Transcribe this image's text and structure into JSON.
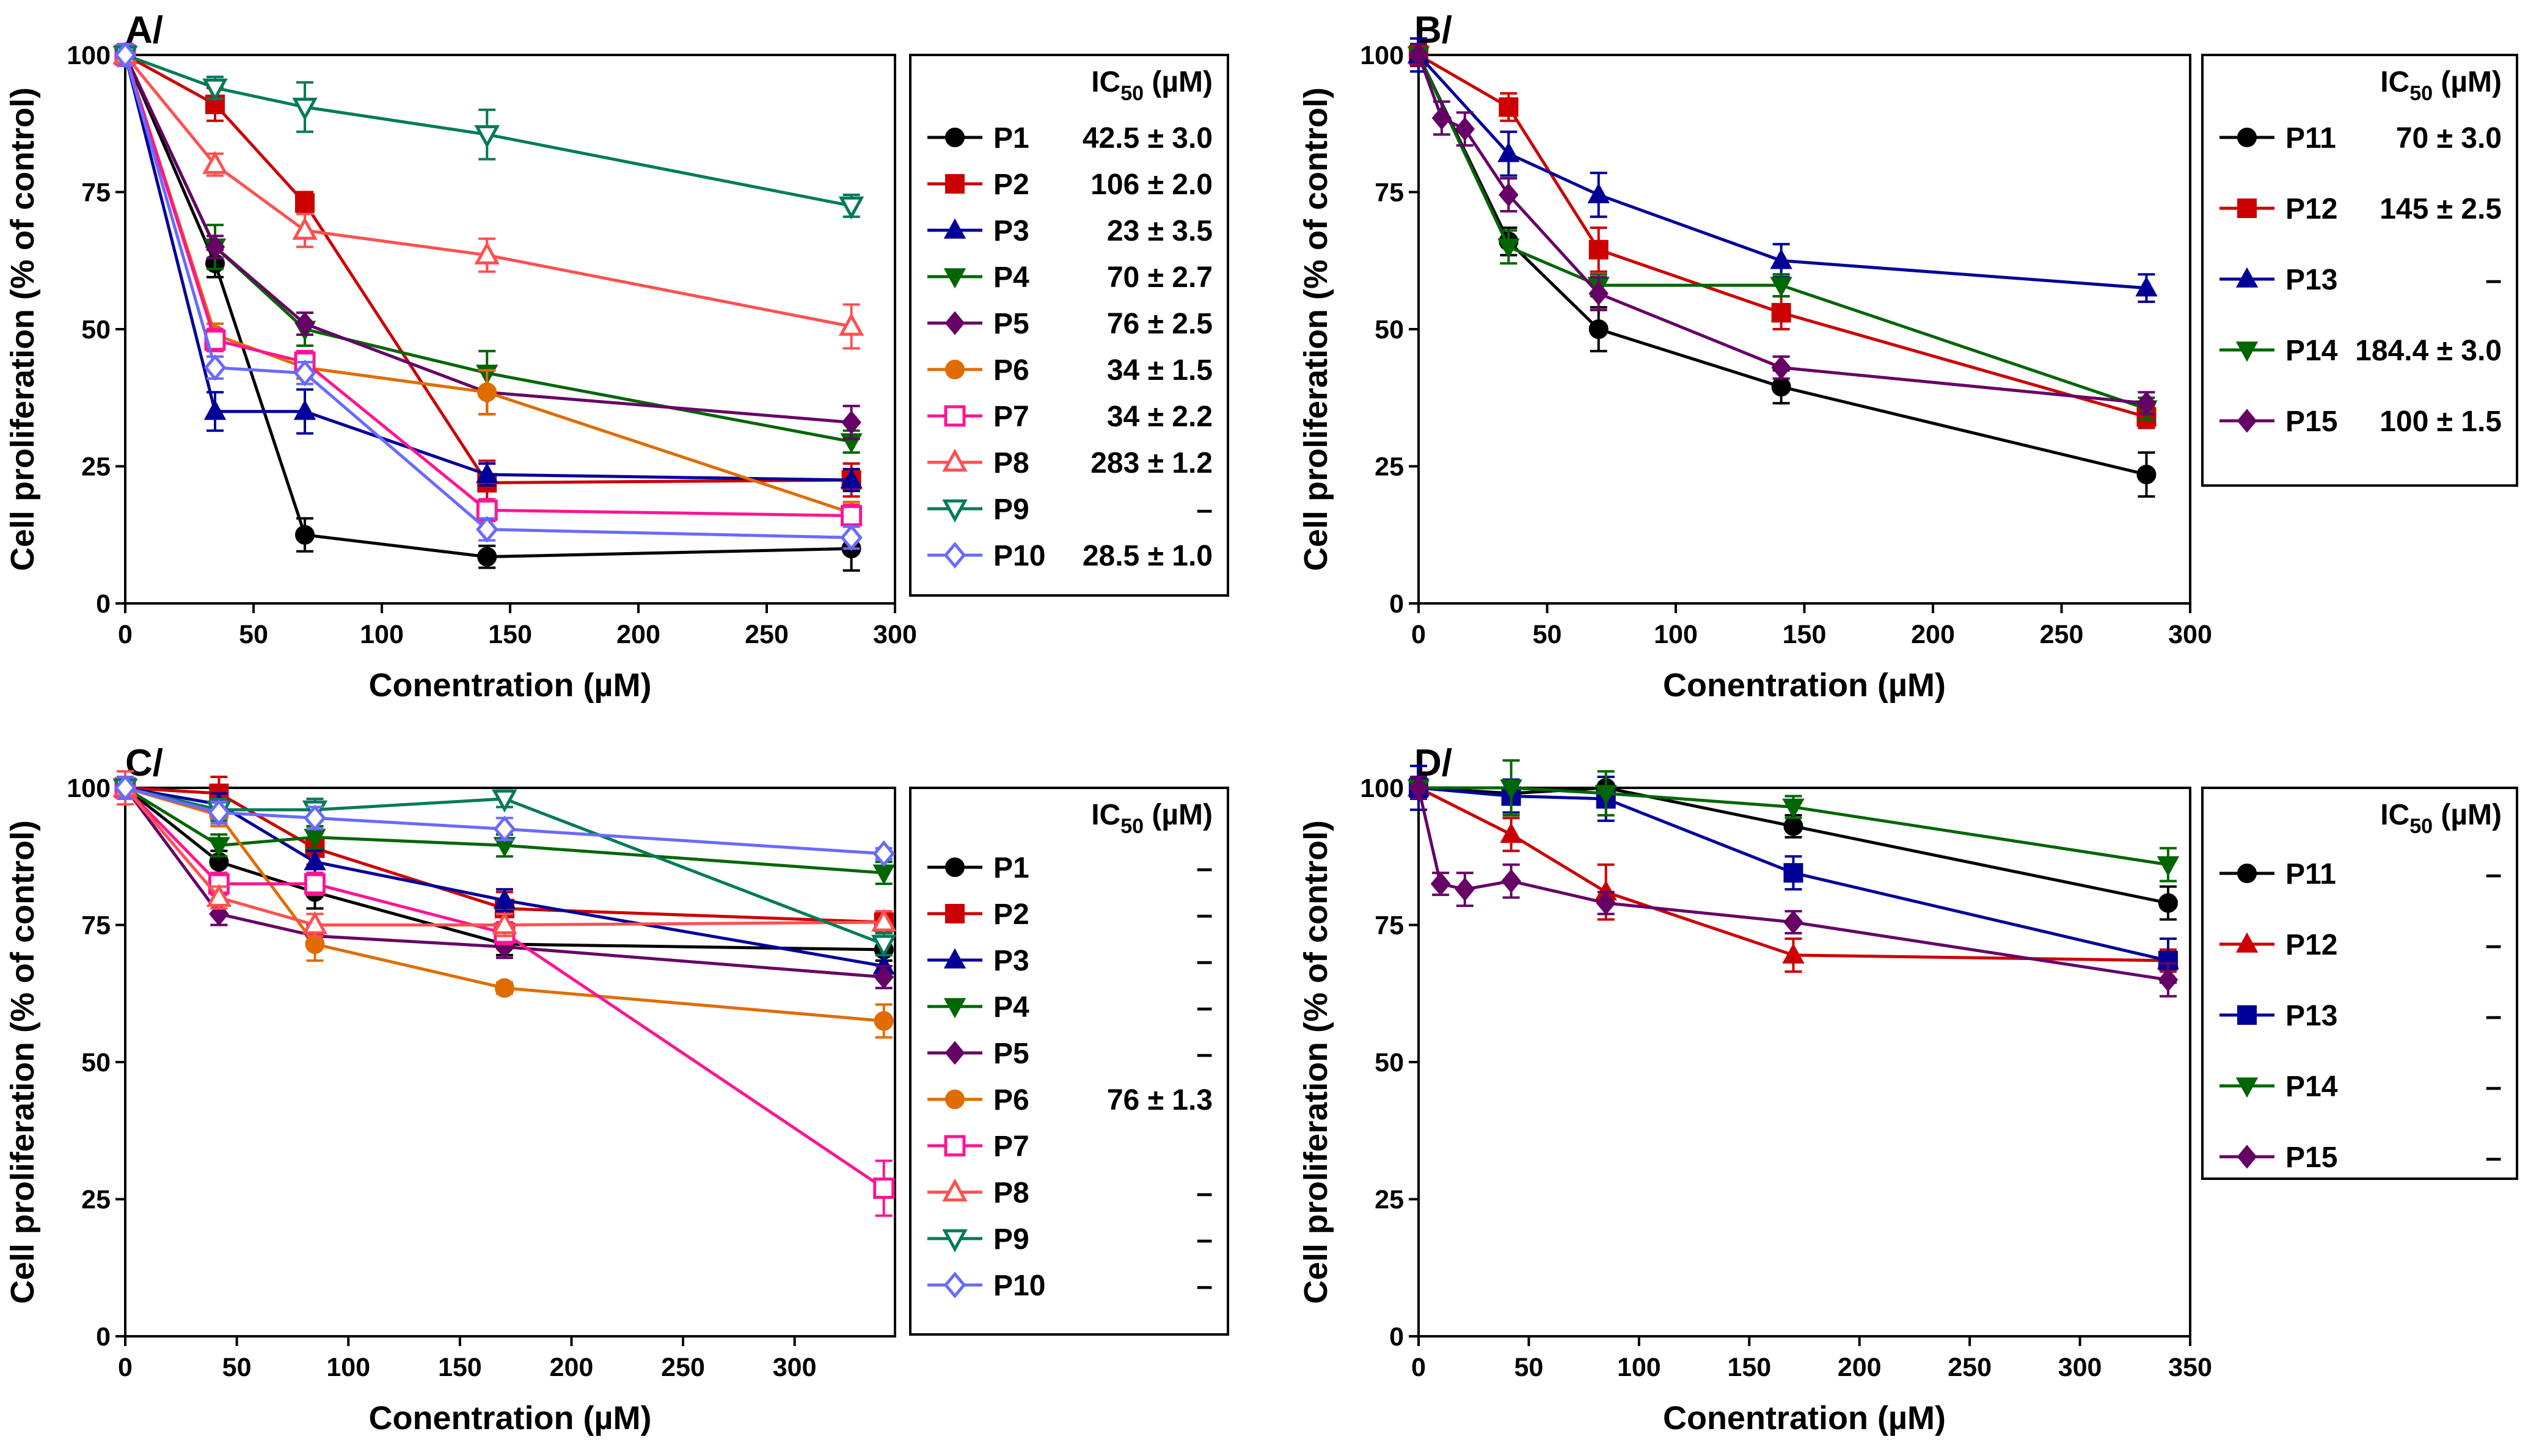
{
  "chart_data": [
    {
      "type": "line",
      "panel_label": "A/",
      "xlabel": "Conentration (µM)",
      "ylabel": "Cell proliferation (% of control)",
      "xlim": [
        0,
        300
      ],
      "ylim": [
        0,
        100
      ],
      "xticks": [
        "0",
        "50",
        "100",
        "150",
        "200",
        "250",
        "300"
      ],
      "yticks": [
        "0",
        "25",
        "50",
        "75",
        "100"
      ],
      "legend_header": "IC",
      "legend_header_sub": "50",
      "legend_header_unit": " (µM)",
      "series": [
        {
          "name": "P1",
          "ic50": "42.5 ± 3.0",
          "color": "#000000",
          "marker": "circle",
          "x": [
            0,
            35,
            70,
            141,
            283
          ],
          "y": [
            100,
            62,
            12.5,
            8.5,
            10
          ],
          "err": [
            2,
            2.5,
            3,
            2,
            4
          ]
        },
        {
          "name": "P2",
          "ic50": "106 ± 2.0",
          "color": "#cc0000",
          "marker": "square",
          "x": [
            0,
            35,
            70,
            141,
            283
          ],
          "y": [
            100,
            91,
            73,
            22,
            22.5
          ],
          "err": [
            2,
            3,
            2,
            4,
            3
          ]
        },
        {
          "name": "P3",
          "ic50": "23 ± 3.5",
          "color": "#000099",
          "marker": "triangle",
          "x": [
            0,
            35,
            70,
            141,
            283
          ],
          "y": [
            100,
            35,
            35,
            23.5,
            22.5
          ],
          "err": [
            2,
            3.5,
            4,
            2,
            2
          ]
        },
        {
          "name": "P4",
          "ic50": "70 ± 2.7",
          "color": "#006600",
          "marker": "triangle-down",
          "x": [
            0,
            35,
            70,
            141,
            283
          ],
          "y": [
            100,
            65,
            50,
            42,
            29.5
          ],
          "err": [
            2,
            4,
            3,
            4,
            2
          ]
        },
        {
          "name": "P5",
          "ic50": "76 ± 2.5",
          "color": "#660066",
          "marker": "diamond",
          "x": [
            0,
            35,
            70,
            141,
            283
          ],
          "y": [
            100,
            65,
            51,
            38.5,
            33
          ],
          "err": [
            2,
            2,
            2,
            4,
            3
          ]
        },
        {
          "name": "P6",
          "ic50": "34 ± 1.5",
          "color": "#e06c00",
          "marker": "circle",
          "x": [
            0,
            35,
            70,
            141,
            283
          ],
          "y": [
            100,
            49,
            43,
            38.5,
            16.5
          ],
          "err": [
            2,
            2,
            2,
            4,
            2
          ]
        },
        {
          "name": "P7",
          "ic50": "34 ± 2.2",
          "color": "#ff1493",
          "marker": "square-open",
          "x": [
            0,
            35,
            70,
            141,
            283
          ],
          "y": [
            100,
            48,
            44,
            17,
            16
          ],
          "err": [
            2,
            2,
            2,
            2,
            2
          ]
        },
        {
          "name": "P8",
          "ic50": "283 ± 1.2",
          "color": "#ff5050",
          "marker": "triangle-open",
          "x": [
            0,
            35,
            70,
            141,
            283
          ],
          "y": [
            100,
            80,
            68,
            63.5,
            50.5
          ],
          "err": [
            2,
            2,
            3,
            3,
            4
          ]
        },
        {
          "name": "P9",
          "ic50": "–",
          "color": "#007a5a",
          "marker": "triangle-down-open",
          "x": [
            0,
            35,
            70,
            141,
            283
          ],
          "y": [
            100,
            94,
            90.5,
            85.5,
            72.5
          ],
          "err": [
            2,
            2,
            4.5,
            4.5,
            2
          ]
        },
        {
          "name": "P10",
          "ic50": "28.5 ± 1.0",
          "color": "#6a6aff",
          "marker": "diamond-open",
          "x": [
            0,
            35,
            70,
            141,
            283
          ],
          "y": [
            100,
            43,
            42,
            13.5,
            12
          ],
          "err": [
            2,
            2,
            2,
            2,
            2
          ]
        }
      ]
    },
    {
      "type": "line",
      "panel_label": "B/",
      "xlabel": "Conentration (µM)",
      "ylabel": "Cell proliferation (% of control)",
      "xlim": [
        0,
        300
      ],
      "ylim": [
        0,
        100
      ],
      "xticks": [
        "0",
        "50",
        "100",
        "150",
        "200",
        "250",
        "300"
      ],
      "yticks": [
        "0",
        "25",
        "50",
        "75",
        "100"
      ],
      "legend_header": "IC",
      "legend_header_sub": "50",
      "legend_header_unit": " (µM)",
      "series": [
        {
          "name": "P11",
          "ic50": "70 ± 3.0",
          "color": "#000000",
          "marker": "circle",
          "x": [
            0,
            35,
            70,
            141,
            283
          ],
          "y": [
            100,
            66,
            50,
            39.5,
            23.5
          ],
          "err": [
            2,
            2.5,
            4,
            3,
            4
          ]
        },
        {
          "name": "P12",
          "ic50": "145 ± 2.5",
          "color": "#cc0000",
          "marker": "square",
          "x": [
            0,
            35,
            70,
            141,
            283
          ],
          "y": [
            100,
            90.5,
            64.5,
            53,
            34
          ],
          "err": [
            2,
            2.5,
            4,
            3,
            2
          ]
        },
        {
          "name": "P13",
          "ic50": "–",
          "color": "#000099",
          "marker": "triangle",
          "x": [
            0,
            35,
            70,
            141,
            283
          ],
          "y": [
            100,
            82,
            74.5,
            62.5,
            57.5
          ],
          "err": [
            3,
            4,
            4,
            3,
            2.5
          ]
        },
        {
          "name": "P14",
          "ic50": "184.4 ± 3.0",
          "color": "#006600",
          "marker": "triangle-down",
          "x": [
            0,
            35,
            70,
            141,
            283
          ],
          "y": [
            100,
            65,
            58,
            58,
            35.5
          ],
          "err": [
            2,
            3,
            2,
            2,
            2
          ]
        },
        {
          "name": "P15",
          "ic50": "100 ± 1.5",
          "color": "#660066",
          "marker": "diamond",
          "x": [
            0,
            9,
            18,
            35,
            70,
            141,
            283
          ],
          "y": [
            100,
            88.5,
            86.5,
            74.5,
            56.5,
            43,
            36.5
          ],
          "err": [
            2,
            3,
            3,
            3,
            3,
            2,
            2
          ]
        }
      ]
    },
    {
      "type": "line",
      "panel_label": "C/",
      "xlabel": "Conentration (µM)",
      "ylabel": "Cell proliferation (% of control)",
      "xlim": [
        0,
        345
      ],
      "ylim": [
        0,
        100
      ],
      "xticks": [
        "0",
        "50",
        "100",
        "150",
        "200",
        "250",
        "300"
      ],
      "yticks": [
        "0",
        "25",
        "50",
        "75",
        "100"
      ],
      "legend_header": "IC",
      "legend_header_sub": "50",
      "legend_header_unit": " (µM)",
      "series": [
        {
          "name": "P1",
          "ic50": "–",
          "color": "#000000",
          "marker": "circle",
          "x": [
            0,
            42,
            85,
            170,
            340
          ],
          "y": [
            100,
            86.5,
            81,
            71.5,
            70.5
          ],
          "err": [
            2,
            2,
            3,
            2,
            2
          ]
        },
        {
          "name": "P2",
          "ic50": "–",
          "color": "#cc0000",
          "marker": "square",
          "x": [
            0,
            42,
            85,
            170,
            340
          ],
          "y": [
            100,
            99,
            89,
            78,
            75.5
          ],
          "err": [
            2,
            3,
            3,
            3,
            2
          ]
        },
        {
          "name": "P3",
          "ic50": "–",
          "color": "#000099",
          "marker": "triangle",
          "x": [
            0,
            42,
            85,
            170,
            340
          ],
          "y": [
            100,
            97,
            86.5,
            79.5,
            67.5
          ],
          "err": [
            2,
            2,
            2,
            2,
            2
          ]
        },
        {
          "name": "P4",
          "ic50": "–",
          "color": "#006600",
          "marker": "triangle-down",
          "x": [
            0,
            42,
            85,
            170,
            340
          ],
          "y": [
            100,
            89.5,
            91,
            89.5,
            84.5
          ],
          "err": [
            2,
            2,
            2,
            2,
            2
          ]
        },
        {
          "name": "P5",
          "ic50": "–",
          "color": "#660066",
          "marker": "diamond",
          "x": [
            0,
            42,
            85,
            170,
            340
          ],
          "y": [
            100,
            77,
            73,
            71,
            65.5
          ],
          "err": [
            2,
            2,
            2,
            2,
            2
          ]
        },
        {
          "name": "P6",
          "ic50": "76 ± 1.3",
          "color": "#e06c00",
          "marker": "circle",
          "x": [
            0,
            42,
            85,
            170,
            340
          ],
          "y": [
            100,
            95,
            71.5,
            63.5,
            57.5
          ],
          "err": [
            2,
            2,
            3,
            1,
            3
          ]
        },
        {
          "name": "P7",
          "ic50": "",
          "color": "#ff1493",
          "marker": "square-open",
          "x": [
            0,
            42,
            85,
            170,
            340
          ],
          "y": [
            100,
            82.5,
            82.5,
            73.5,
            27
          ],
          "err": [
            2,
            2,
            2,
            2,
            5
          ]
        },
        {
          "name": "P8",
          "ic50": "–",
          "color": "#ff5050",
          "marker": "triangle-open",
          "x": [
            0,
            42,
            85,
            170,
            340
          ],
          "y": [
            100,
            80,
            75,
            75,
            75.5
          ],
          "err": [
            3,
            2,
            2,
            2,
            2
          ]
        },
        {
          "name": "P9",
          "ic50": "–",
          "color": "#007a5a",
          "marker": "triangle-down-open",
          "x": [
            0,
            42,
            85,
            170,
            340
          ],
          "y": [
            100,
            96,
            96,
            98,
            71.5
          ],
          "err": [
            2,
            2,
            2,
            1.5,
            2
          ]
        },
        {
          "name": "P10",
          "ic50": "–",
          "color": "#6a6aff",
          "marker": "diamond-open",
          "x": [
            0,
            42,
            85,
            170,
            340
          ],
          "y": [
            100,
            95.5,
            94.5,
            92.5,
            88
          ],
          "err": [
            2,
            2,
            2,
            2,
            1
          ]
        }
      ]
    },
    {
      "type": "line",
      "panel_label": "D/",
      "xlabel": "Conentration (µM)",
      "ylabel": "Cell proliferation (% of control)",
      "xlim": [
        0,
        350
      ],
      "ylim": [
        0,
        100
      ],
      "xticks": [
        "0",
        "50",
        "100",
        "150",
        "200",
        "250",
        "300",
        "350"
      ],
      "yticks": [
        "0",
        "25",
        "50",
        "75",
        "100"
      ],
      "legend_header": "IC",
      "legend_header_sub": "50",
      "legend_header_unit": " (µM)",
      "series": [
        {
          "name": "P11",
          "ic50": "–",
          "color": "#000000",
          "marker": "circle",
          "x": [
            0,
            42,
            85,
            170,
            340
          ],
          "y": [
            100,
            99,
            100,
            93,
            79
          ],
          "err": [
            2,
            2,
            2,
            2,
            3
          ]
        },
        {
          "name": "P12",
          "ic50": "–",
          "color": "#cc0000",
          "marker": "triangle",
          "x": [
            0,
            42,
            85,
            170,
            340
          ],
          "y": [
            100,
            91.5,
            81,
            69.5,
            68.5
          ],
          "err": [
            2,
            3,
            5,
            3,
            2
          ]
        },
        {
          "name": "P13",
          "ic50": "–",
          "color": "#000099",
          "marker": "square",
          "x": [
            0,
            42,
            85,
            170,
            340
          ],
          "y": [
            100,
            98.5,
            98,
            84.5,
            68.5
          ],
          "err": [
            4,
            3,
            4,
            3,
            4
          ]
        },
        {
          "name": "P14",
          "ic50": "–",
          "color": "#006600",
          "marker": "triangle-down",
          "x": [
            0,
            42,
            85,
            170,
            340
          ],
          "y": [
            100,
            100,
            99,
            96.5,
            86
          ],
          "err": [
            2,
            5,
            4,
            2,
            3
          ]
        },
        {
          "name": "P15",
          "ic50": "–",
          "color": "#660066",
          "marker": "diamond",
          "x": [
            0,
            10,
            21,
            42,
            85,
            170,
            340
          ],
          "y": [
            100,
            82.5,
            81.5,
            83,
            79,
            75.5,
            65
          ],
          "err": [
            2,
            2,
            3,
            3,
            2,
            2,
            3
          ]
        }
      ]
    }
  ]
}
